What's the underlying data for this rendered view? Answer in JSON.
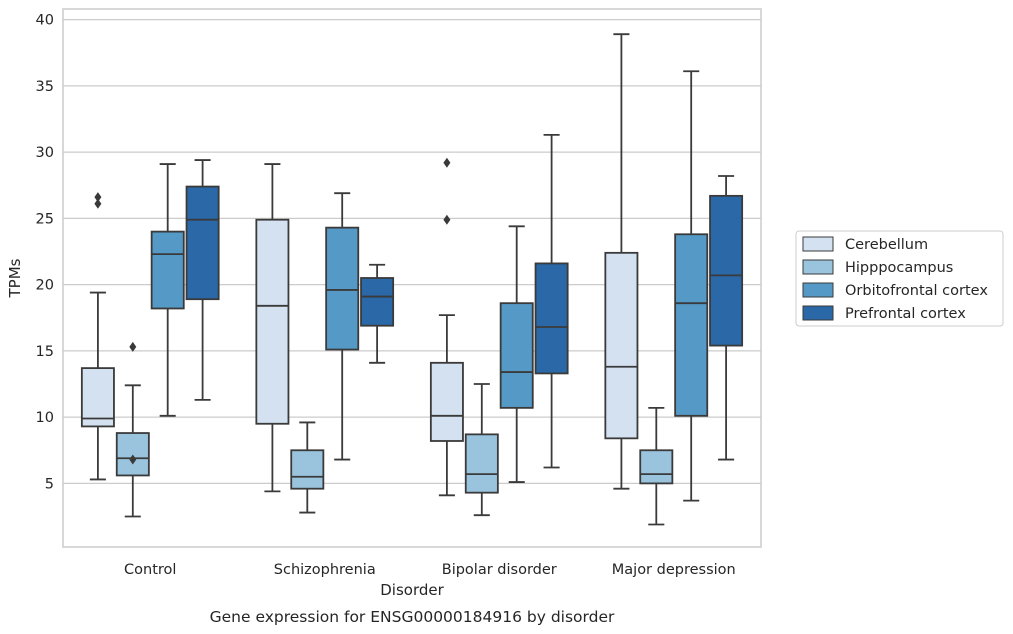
{
  "chart_data": {
    "type": "box",
    "title": "",
    "caption": "Gene expression for ENSG00000184916 by disorder",
    "xlabel": "Disorder",
    "ylabel": "TPMs",
    "ylim": [
      0.2,
      40.8
    ],
    "yticks": [
      5,
      10,
      15,
      20,
      25,
      30,
      35,
      40
    ],
    "grid": "horizontal",
    "legend_position": "right",
    "categories": [
      "Control",
      "Schizophrenia",
      "Bipolar disorder",
      "Major depression"
    ],
    "series": [
      {
        "name": "Cerebellum",
        "color": "#d3e1f0",
        "boxes": [
          {
            "whisker_low": 5.3,
            "q1": 9.3,
            "median": 9.9,
            "q3": 13.7,
            "whisker_high": 19.4,
            "outliers": [
              26.6,
              26.1
            ]
          },
          {
            "whisker_low": 4.4,
            "q1": 9.5,
            "median": 18.4,
            "q3": 24.9,
            "whisker_high": 29.1,
            "outliers": []
          },
          {
            "whisker_low": 4.1,
            "q1": 8.2,
            "median": 10.1,
            "q3": 14.1,
            "whisker_high": 17.7,
            "outliers": [
              29.2,
              24.9
            ]
          },
          {
            "whisker_low": 4.6,
            "q1": 8.4,
            "median": 13.8,
            "q3": 22.4,
            "whisker_high": 38.9,
            "outliers": []
          }
        ]
      },
      {
        "name": "Hipppocampus",
        "color": "#9ac4de",
        "boxes": [
          {
            "whisker_low": 2.5,
            "q1": 5.6,
            "median": 6.9,
            "q3": 8.8,
            "whisker_high": 12.4,
            "outliers": [
              15.3,
              6.8
            ]
          },
          {
            "whisker_low": 2.8,
            "q1": 4.6,
            "median": 5.5,
            "q3": 7.5,
            "whisker_high": 9.6,
            "outliers": []
          },
          {
            "whisker_low": 2.6,
            "q1": 4.3,
            "median": 5.7,
            "q3": 8.7,
            "whisker_high": 12.5,
            "outliers": []
          },
          {
            "whisker_low": 1.9,
            "q1": 5.0,
            "median": 5.7,
            "q3": 7.5,
            "whisker_high": 10.7,
            "outliers": []
          }
        ]
      },
      {
        "name": "Orbitofrontal cortex",
        "color": "#5599c7",
        "boxes": [
          {
            "whisker_low": 10.1,
            "q1": 18.2,
            "median": 22.3,
            "q3": 24.0,
            "whisker_high": 29.1,
            "outliers": []
          },
          {
            "whisker_low": 6.8,
            "q1": 15.1,
            "median": 19.6,
            "q3": 24.3,
            "whisker_high": 26.9,
            "outliers": []
          },
          {
            "whisker_low": 5.1,
            "q1": 10.7,
            "median": 13.4,
            "q3": 18.6,
            "whisker_high": 24.4,
            "outliers": []
          },
          {
            "whisker_low": 3.7,
            "q1": 10.1,
            "median": 18.6,
            "q3": 23.8,
            "whisker_high": 36.1,
            "outliers": []
          }
        ]
      },
      {
        "name": "Prefrontal cortex",
        "color": "#2a68a8",
        "boxes": [
          {
            "whisker_low": 11.3,
            "q1": 18.9,
            "median": 24.9,
            "q3": 27.4,
            "whisker_high": 29.4,
            "outliers": []
          },
          {
            "whisker_low": 14.1,
            "q1": 16.9,
            "median": 19.1,
            "q3": 20.5,
            "whisker_high": 21.5,
            "outliers": []
          },
          {
            "whisker_low": 6.2,
            "q1": 13.3,
            "median": 16.8,
            "q3": 21.6,
            "whisker_high": 31.3,
            "outliers": []
          },
          {
            "whisker_low": 6.8,
            "q1": 15.4,
            "median": 20.7,
            "q3": 26.7,
            "whisker_high": 28.2,
            "outliers": []
          }
        ]
      }
    ]
  }
}
